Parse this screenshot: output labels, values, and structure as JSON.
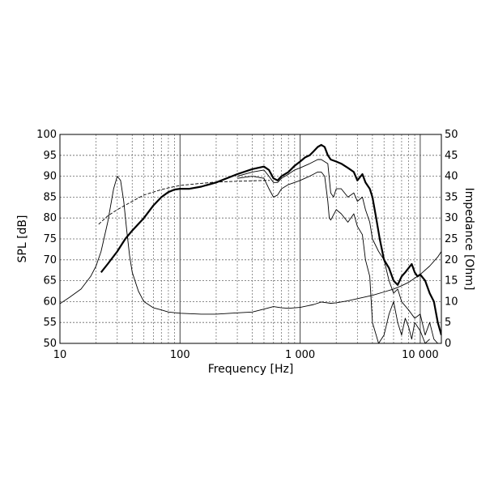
{
  "chart_data": {
    "type": "line",
    "xlabel": "Frequency [Hz]",
    "ylabel": "SPL [dB]",
    "y2label": "Impedance [Ohm]",
    "x_scale": "log",
    "xlim": [
      10,
      15000
    ],
    "ylim": [
      50,
      100
    ],
    "y2lim": [
      0,
      50
    ],
    "x_ticks": [
      {
        "value": 10,
        "label": "10"
      },
      {
        "value": 100,
        "label": "100"
      },
      {
        "value": 1000,
        "label": "1 000"
      },
      {
        "value": 10000,
        "label": "10 000"
      }
    ],
    "y_ticks": [
      50,
      55,
      60,
      65,
      70,
      75,
      80,
      85,
      90,
      95,
      100
    ],
    "y2_ticks": [
      0,
      5,
      10,
      15,
      20,
      25,
      30,
      35,
      40,
      45,
      50
    ],
    "grid": true,
    "series": [
      {
        "axis": "spl",
        "style": "thick",
        "x": [
          22,
          25,
          30,
          35,
          40,
          50,
          60,
          70,
          80,
          90,
          100,
          120,
          150,
          200,
          300,
          400,
          500,
          550,
          600,
          650,
          700,
          800,
          900,
          1000,
          1100,
          1200,
          1300,
          1400,
          1500,
          1600,
          1700,
          1800,
          2000,
          2200,
          2500,
          2800,
          3000,
          3300,
          3500,
          3800,
          4000,
          4300,
          4600,
          5000,
          5500,
          6000,
          6500,
          7000,
          7500,
          8000,
          8500,
          9000,
          9500,
          10000,
          11000,
          12000,
          13000,
          14000,
          15000
        ],
        "y": [
          67,
          69,
          72,
          75,
          77,
          80,
          83,
          85,
          86.2,
          86.8,
          87,
          87,
          87.5,
          88.5,
          90.5,
          91.7,
          92.3,
          91.5,
          89.5,
          89,
          90,
          91,
          92.5,
          93.5,
          94.5,
          95,
          96,
          97,
          97.5,
          97,
          95,
          94,
          93.5,
          93,
          92,
          91,
          89,
          90.5,
          88.5,
          87,
          85,
          80,
          75,
          70,
          68,
          65,
          64,
          66,
          67,
          68,
          69,
          67,
          66,
          66.5,
          65,
          62,
          60,
          55,
          52
        ]
      },
      {
        "axis": "spl",
        "style": "thin",
        "x": [
          300,
          400,
          500,
          550,
          600,
          650,
          700,
          800,
          900,
          1000,
          1200,
          1400,
          1500,
          1700,
          1800,
          1900,
          2000,
          2200,
          2500,
          2800,
          3000,
          3300,
          3500,
          3800,
          4000,
          4500,
          5000,
          5500,
          6000,
          6500,
          7000,
          8000,
          9000,
          10000,
          11000,
          12000,
          13000,
          14000
        ],
        "y": [
          90,
          91,
          91.5,
          90,
          88.5,
          88.5,
          89.5,
          90.5,
          91.5,
          92,
          93,
          94,
          94,
          93,
          86,
          85,
          87,
          87,
          85,
          86,
          84,
          85,
          82,
          79,
          75,
          72,
          70,
          65,
          62,
          63,
          60,
          58,
          56,
          57,
          52,
          55,
          51,
          50
        ]
      },
      {
        "axis": "spl",
        "style": "thin",
        "x": [
          300,
          400,
          500,
          550,
          600,
          650,
          700,
          800,
          900,
          1000,
          1200,
          1400,
          1500,
          1600,
          1700,
          1750,
          1800,
          2000,
          2200,
          2500,
          2800,
          3000,
          3300,
          3500,
          3800,
          4000,
          4500,
          5000,
          5500,
          6000,
          6500,
          7000,
          7500,
          8000,
          8500,
          9000,
          10000,
          11000,
          12000
        ],
        "y": [
          89.5,
          90,
          89.5,
          87,
          85,
          85.5,
          87,
          88,
          88.5,
          89,
          90,
          91,
          91,
          90,
          84,
          80,
          79.5,
          82,
          81,
          79,
          81,
          78,
          76,
          70,
          66,
          55,
          50,
          52,
          57,
          60,
          55,
          52,
          56,
          54,
          51,
          55,
          53,
          50,
          51
        ]
      },
      {
        "axis": "spl",
        "style": "dashed",
        "x": [
          21,
          25,
          30,
          40,
          50,
          60,
          70,
          80,
          100,
          150,
          200,
          300,
          400,
          500,
          560
        ],
        "y": [
          78.5,
          80.5,
          82,
          84,
          85.5,
          86.2,
          86.8,
          87.2,
          87.8,
          88.3,
          88.6,
          88.8,
          88.9,
          89,
          89
        ]
      },
      {
        "axis": "impedance",
        "style": "thin",
        "x": [
          10,
          12,
          15,
          18,
          20,
          22,
          25,
          28,
          30,
          32,
          34,
          36,
          38,
          40,
          45,
          50,
          60,
          70,
          80,
          100,
          150,
          200,
          300,
          400,
          500,
          600,
          700,
          800,
          1000,
          1300,
          1500,
          1800,
          2000,
          2500,
          3000,
          4000,
          5000,
          6000,
          7000,
          8000,
          10000,
          12000,
          14000,
          15000
        ],
        "y": [
          9.5,
          11,
          13,
          16,
          18.5,
          22,
          29,
          37,
          40,
          39,
          34,
          27,
          21,
          17,
          12.5,
          10,
          8.5,
          8,
          7.5,
          7.2,
          7,
          7,
          7.3,
          7.5,
          8.2,
          8.8,
          8.5,
          8.4,
          8.6,
          9.3,
          9.9,
          9.6,
          9.7,
          10.2,
          10.7,
          11.5,
          12.3,
          13,
          13.8,
          14.6,
          16.5,
          18.5,
          20.7,
          22
        ]
      }
    ]
  }
}
